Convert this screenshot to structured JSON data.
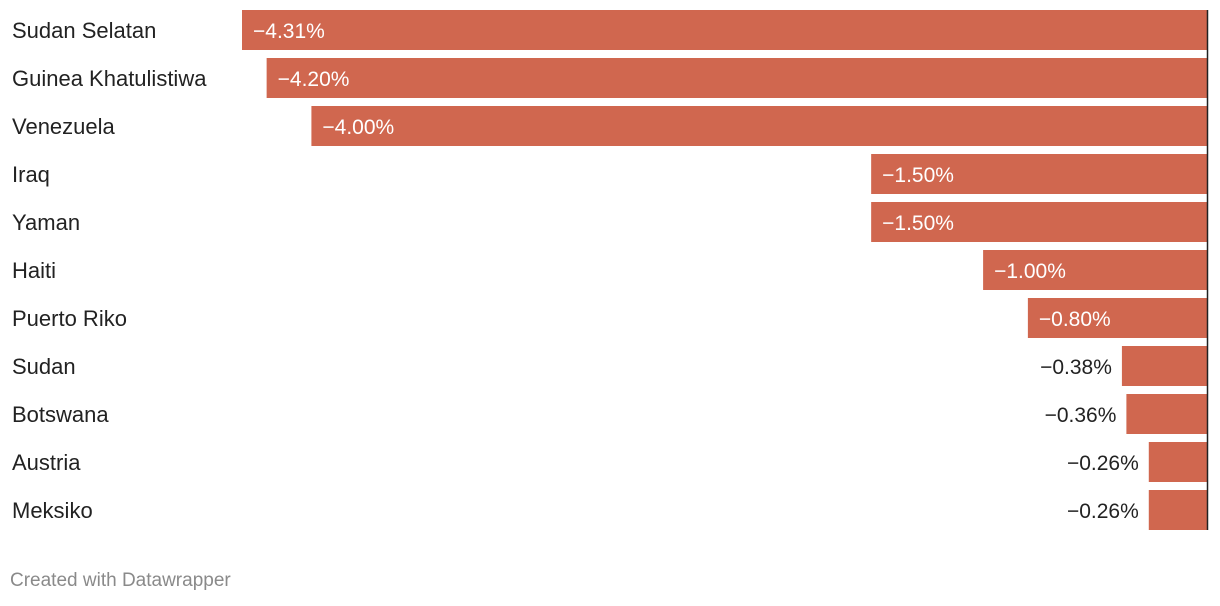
{
  "chart_data": {
    "type": "bar",
    "orientation": "horizontal",
    "categories": [
      "Sudan Selatan",
      "Guinea Khatulistiwa",
      "Venezuela",
      "Iraq",
      "Yaman",
      "Haiti",
      "Puerto Riko",
      "Sudan",
      "Botswana",
      "Austria",
      "Meksiko"
    ],
    "values": [
      -4.31,
      -4.2,
      -4.0,
      -1.5,
      -1.5,
      -1.0,
      -0.8,
      -0.38,
      -0.36,
      -0.26,
      -0.26
    ],
    "value_labels": [
      "−4.31%",
      "−4.20%",
      "−4.00%",
      "−1.50%",
      "−1.50%",
      "−1.00%",
      "−0.80%",
      "−0.38%",
      "−0.36%",
      "−0.26%",
      "−0.26%"
    ],
    "unit": "%",
    "title": "",
    "xlabel": "",
    "ylabel": "",
    "xlim": [
      -4.31,
      0
    ],
    "grid": false,
    "bar_color": "#d0674f",
    "label_inside_color": "#ffffff",
    "label_outside_color": "#222222",
    "axis_color": "#222222"
  },
  "footer": {
    "credit": "Created with Datawrapper"
  }
}
